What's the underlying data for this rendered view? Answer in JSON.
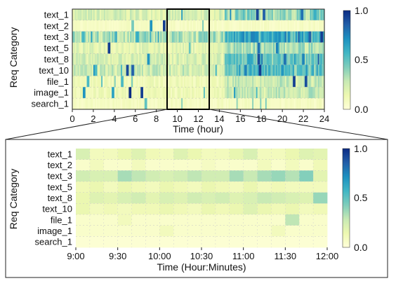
{
  "colorscale": {
    "stops": [
      "#ffffd9",
      "#edf8b1",
      "#c7e9b4",
      "#7fcdbb",
      "#41b6c4",
      "#1d91c0",
      "#225ea8",
      "#0c2c84"
    ],
    "ticks": [
      "1.0",
      "0.5",
      "0.0"
    ]
  },
  "chart_data": [
    {
      "type": "heatmap",
      "xlabel": "Time (hour)",
      "ylabel": "Req Category",
      "categories": [
        "text_1",
        "text_2",
        "text_3",
        "text_5",
        "text_8",
        "text_10",
        "file_1",
        "image_1",
        "search_1"
      ],
      "x_ticks": [
        "0",
        "2",
        "4",
        "6",
        "8",
        "10",
        "12",
        "14",
        "16",
        "18",
        "20",
        "22",
        "24"
      ],
      "xlim": [
        0,
        24
      ],
      "vlim": [
        0,
        1
      ],
      "highlight_range": [
        9,
        13
      ],
      "base": [
        0.22,
        0.07,
        0.32,
        0.18,
        0.22,
        0.25,
        0.12,
        0.12,
        0.08
      ],
      "bursts": [
        {
          "row": 0,
          "x": 17.6,
          "v": 0.92
        },
        {
          "row": 0,
          "x": 18.2,
          "v": 0.85
        },
        {
          "row": 0,
          "x": 21.9,
          "v": 0.8
        },
        {
          "row": 0,
          "x": 23.1,
          "v": 0.6
        },
        {
          "row": 1,
          "x": 7.5,
          "v": 0.7
        },
        {
          "row": 1,
          "x": 8.7,
          "v": 0.95
        },
        {
          "row": 1,
          "x": 5.7,
          "v": 0.45
        },
        {
          "row": 2,
          "x": 17.2,
          "v": 0.75
        },
        {
          "row": 2,
          "x": 22.6,
          "v": 0.85
        },
        {
          "row": 2,
          "x": 23.7,
          "v": 0.95
        },
        {
          "row": 2,
          "x": 19.8,
          "v": 0.7
        },
        {
          "row": 3,
          "x": 3.5,
          "v": 0.95
        },
        {
          "row": 3,
          "x": 17.8,
          "v": 0.8
        },
        {
          "row": 3,
          "x": 19.5,
          "v": 0.75
        },
        {
          "row": 4,
          "x": 17.7,
          "v": 0.9
        },
        {
          "row": 4,
          "x": 7.2,
          "v": 0.7
        },
        {
          "row": 4,
          "x": 20.3,
          "v": 0.8
        },
        {
          "row": 4,
          "x": 22.0,
          "v": 0.75
        },
        {
          "row": 5,
          "x": 5.2,
          "v": 0.92
        },
        {
          "row": 5,
          "x": 5.8,
          "v": 0.85
        },
        {
          "row": 5,
          "x": 17.9,
          "v": 0.95
        },
        {
          "row": 5,
          "x": 16.5,
          "v": 0.75
        },
        {
          "row": 5,
          "x": 2.2,
          "v": 0.55
        },
        {
          "row": 6,
          "x": 21.1,
          "v": 0.95
        },
        {
          "row": 6,
          "x": 22.3,
          "v": 0.9
        },
        {
          "row": 6,
          "x": 1.5,
          "v": 0.55
        },
        {
          "row": 6,
          "x": 4.8,
          "v": 0.55
        },
        {
          "row": 7,
          "x": 6.6,
          "v": 0.95
        },
        {
          "row": 7,
          "x": 5.5,
          "v": 0.75
        },
        {
          "row": 7,
          "x": 1.1,
          "v": 0.7
        },
        {
          "row": 7,
          "x": 3.9,
          "v": 0.65
        },
        {
          "row": 8,
          "x": 7.0,
          "v": 0.5
        }
      ]
    },
    {
      "type": "heatmap",
      "xlabel": "Time (Hour:Minutes)",
      "ylabel": "Req Category",
      "categories": [
        "text_1",
        "text_2",
        "text_3",
        "text_5",
        "text_8",
        "text_10",
        "file_1",
        "image_1",
        "search_1"
      ],
      "x_ticks": [
        "9:00",
        "9:30",
        "10:00",
        "10:30",
        "11:00",
        "11:30",
        "12:00"
      ],
      "xlim": [
        "9:00",
        "12:00"
      ],
      "vlim": [
        0,
        1
      ],
      "time_step_minutes": 10,
      "values": [
        [
          0.22,
          0.1,
          0.1,
          0.15,
          0.2,
          0.12,
          0.1,
          0.2,
          0.15,
          0.1,
          0.1,
          0.16,
          0.22,
          0.1,
          0.1,
          0.15,
          0.2,
          0.18
        ],
        [
          0.05,
          0.1,
          0.05,
          0.05,
          0.1,
          0.05,
          0.05,
          0.05,
          0.05,
          0.08,
          0.05,
          0.05,
          0.05,
          0.1,
          0.05,
          0.1,
          0.05,
          0.12
        ],
        [
          0.25,
          0.22,
          0.22,
          0.35,
          0.3,
          0.25,
          0.22,
          0.25,
          0.3,
          0.25,
          0.25,
          0.35,
          0.28,
          0.35,
          0.38,
          0.32,
          0.42,
          0.18
        ],
        [
          0.12,
          0.15,
          0.1,
          0.15,
          0.12,
          0.1,
          0.15,
          0.12,
          0.1,
          0.15,
          0.12,
          0.1,
          0.15,
          0.1,
          0.12,
          0.1,
          0.1,
          0.1
        ],
        [
          0.15,
          0.2,
          0.18,
          0.22,
          0.25,
          0.18,
          0.22,
          0.2,
          0.25,
          0.22,
          0.25,
          0.2,
          0.22,
          0.28,
          0.25,
          0.22,
          0.2,
          0.38
        ],
        [
          0.15,
          0.1,
          0.12,
          0.1,
          0.12,
          0.12,
          0.15,
          0.12,
          0.1,
          0.15,
          0.12,
          0.15,
          0.2,
          0.15,
          0.12,
          0.15,
          0.1,
          0.12
        ],
        [
          0.05,
          0.05,
          0.05,
          0.1,
          0.05,
          0.05,
          0.05,
          0.05,
          0.05,
          0.05,
          0.05,
          0.05,
          0.05,
          0.05,
          0.05,
          0.3,
          0.05,
          0.05
        ],
        [
          0.05,
          0.05,
          0.05,
          0.05,
          0.05,
          0.05,
          0.1,
          0.05,
          0.05,
          0.05,
          0.05,
          0.05,
          0.05,
          0.05,
          0.1,
          0.05,
          0.05,
          0.05
        ],
        [
          0.02,
          0.02,
          0.02,
          0.02,
          0.02,
          0.02,
          0.02,
          0.02,
          0.02,
          0.02,
          0.02,
          0.02,
          0.02,
          0.02,
          0.02,
          0.02,
          0.02,
          0.02
        ]
      ]
    }
  ]
}
